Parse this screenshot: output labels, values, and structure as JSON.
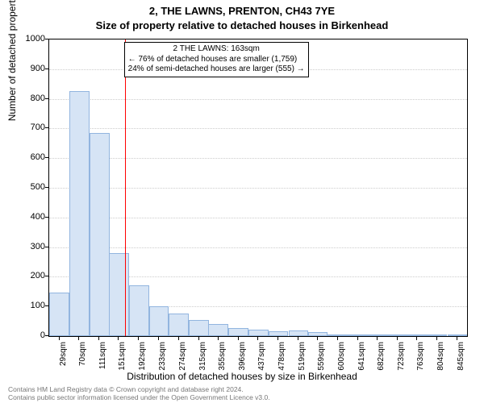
{
  "title_line1": "2, THE LAWNS, PRENTON, CH43 7YE",
  "title_line2": "Size of property relative to detached houses in Birkenhead",
  "ylabel": "Number of detached properties",
  "xlabel": "Distribution of detached houses by size in Birkenhead",
  "chart": {
    "type": "histogram",
    "background_color": "#ffffff",
    "grid_color": "#cccccc",
    "border_color": "#000000",
    "ylim": [
      0,
      1000
    ],
    "yticks": [
      0,
      100,
      200,
      300,
      400,
      500,
      600,
      700,
      800,
      900,
      1000
    ],
    "xlim": [
      8,
      865
    ],
    "xticks": [
      {
        "v": 29,
        "label": "29sqm"
      },
      {
        "v": 70,
        "label": "70sqm"
      },
      {
        "v": 111,
        "label": "111sqm"
      },
      {
        "v": 151,
        "label": "151sqm"
      },
      {
        "v": 192,
        "label": "192sqm"
      },
      {
        "v": 233,
        "label": "233sqm"
      },
      {
        "v": 274,
        "label": "274sqm"
      },
      {
        "v": 315,
        "label": "315sqm"
      },
      {
        "v": 355,
        "label": "355sqm"
      },
      {
        "v": 396,
        "label": "396sqm"
      },
      {
        "v": 437,
        "label": "437sqm"
      },
      {
        "v": 478,
        "label": "478sqm"
      },
      {
        "v": 519,
        "label": "519sqm"
      },
      {
        "v": 559,
        "label": "559sqm"
      },
      {
        "v": 600,
        "label": "600sqm"
      },
      {
        "v": 641,
        "label": "641sqm"
      },
      {
        "v": 682,
        "label": "682sqm"
      },
      {
        "v": 723,
        "label": "723sqm"
      },
      {
        "v": 763,
        "label": "763sqm"
      },
      {
        "v": 804,
        "label": "804sqm"
      },
      {
        "v": 845,
        "label": "845sqm"
      }
    ],
    "bar_width_x": 40.8,
    "bar_fill": "#d6e4f5",
    "bar_stroke": "#92b5df",
    "bars": [
      {
        "x": 29,
        "y": 148
      },
      {
        "x": 70,
        "y": 825
      },
      {
        "x": 111,
        "y": 685
      },
      {
        "x": 151,
        "y": 280
      },
      {
        "x": 192,
        "y": 170
      },
      {
        "x": 233,
        "y": 100
      },
      {
        "x": 274,
        "y": 75
      },
      {
        "x": 315,
        "y": 55
      },
      {
        "x": 355,
        "y": 42
      },
      {
        "x": 396,
        "y": 27
      },
      {
        "x": 437,
        "y": 23
      },
      {
        "x": 478,
        "y": 15
      },
      {
        "x": 519,
        "y": 18
      },
      {
        "x": 559,
        "y": 14
      },
      {
        "x": 600,
        "y": 3
      },
      {
        "x": 641,
        "y": 3
      },
      {
        "x": 682,
        "y": 2
      },
      {
        "x": 723,
        "y": 2
      },
      {
        "x": 763,
        "y": 1
      },
      {
        "x": 804,
        "y": 1
      },
      {
        "x": 845,
        "y": 5
      }
    ],
    "reference_line": {
      "x": 163,
      "color": "#ff0000",
      "width": 1
    }
  },
  "annotation": {
    "lines": [
      "2 THE LAWNS: 163sqm",
      "← 76% of detached houses are smaller (1,759)",
      "24% of semi-detached houses are larger (555) →"
    ],
    "border_color": "#000000",
    "background": "#ffffff",
    "fontsize": 10
  },
  "footer": {
    "line1": "Contains HM Land Registry data © Crown copyright and database right 2024.",
    "line2": "Contains public sector information licensed under the Open Government Licence v3.0.",
    "color": "#777777"
  }
}
